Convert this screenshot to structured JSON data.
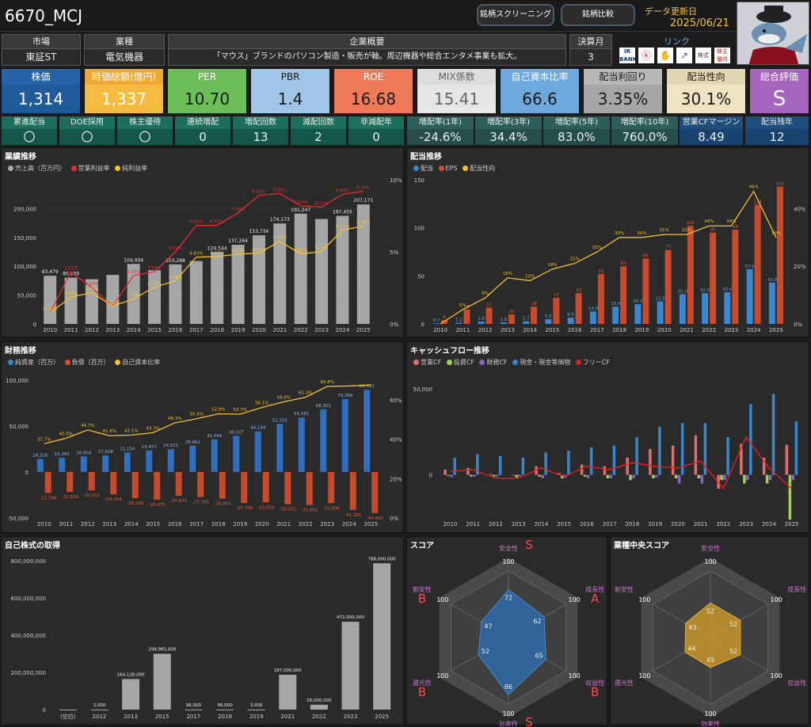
{
  "header": {
    "ticker": "6670_MCJ",
    "btn_screening": "銘柄スクリーニング",
    "btn_compare": "銘柄比較",
    "update_label": "データ更新日",
    "update_date": "2025/06/21"
  },
  "info": {
    "market_label": "市場",
    "market": "東証ST",
    "industry_label": "業種",
    "industry": "電気機器",
    "summary_label": "企業概要",
    "summary": "「マウス」ブランドのパソコン製造・販売が軸。周辺機器や総合エンタメ事業も拡大。",
    "fy_label": "決算月",
    "fy": "3",
    "link_label": "リンク",
    "links": [
      "IR BANK",
      "kabutan",
      "minkabu",
      "kabuyoho",
      "minkabu2",
      "株主優待"
    ]
  },
  "metrics": [
    {
      "label": "株価",
      "value": "1,314",
      "tbg": "#2563a8",
      "vbg": "#1f5a99",
      "tc": "#fff",
      "vc": "#fff"
    },
    {
      "label": "時価総額(億円)",
      "value": "1,337",
      "tbg": "#f0a830",
      "vbg": "#f5bb40",
      "tc": "#fff",
      "vc": "#fff"
    },
    {
      "label": "PER",
      "value": "10.70",
      "tbg": "#6cbe58",
      "vbg": "#6cbe58",
      "tc": "#fff",
      "vc": "#1a1a1a"
    },
    {
      "label": "PBR",
      "value": "1.4",
      "tbg": "#9fc6e6",
      "vbg": "#9fc6e6",
      "tc": "#1a1a1a",
      "vc": "#1a1a1a"
    },
    {
      "label": "ROE",
      "value": "16.68",
      "tbg": "#ef7a5a",
      "vbg": "#ef7a5a",
      "tc": "#fff",
      "vc": "#1a1a1a"
    },
    {
      "label": "MIX係数",
      "value": "15.41",
      "tbg": "#dcdcdc",
      "vbg": "#e6e6e6",
      "tc": "#666",
      "vc": "#666"
    },
    {
      "label": "自己資本比率",
      "value": "66.6",
      "tbg": "#6ea8dc",
      "vbg": "#6ea8dc",
      "tc": "#fff",
      "vc": "#1a1a1a"
    },
    {
      "label": "配当利回り",
      "value": "3.35%",
      "tbg": "#b8b8b8",
      "vbg": "#a6a6a6",
      "tc": "#1a1a1a",
      "vc": "#1a1a1a"
    },
    {
      "label": "配当性向",
      "value": "30.1%",
      "tbg": "#e3d6b2",
      "vbg": "#efe3c4",
      "tc": "#1a1a1a",
      "vc": "#1a1a1a"
    },
    {
      "label": "総合評価",
      "value": "S",
      "tbg": "#a565bf",
      "vbg": "#a565bf",
      "tc": "#fff",
      "vc": "#fff"
    }
  ],
  "flags": [
    {
      "label": "累進配当",
      "value": "〇"
    },
    {
      "label": "DOE採用",
      "value": "〇"
    },
    {
      "label": "株主優待",
      "value": "〇"
    },
    {
      "label": "連続増配",
      "value": "0"
    },
    {
      "label": "増配回数",
      "value": "13"
    },
    {
      "label": "減配回数",
      "value": "2"
    },
    {
      "label": "非減配年",
      "value": "0"
    }
  ],
  "growth": [
    {
      "label": "増配率(1年)",
      "value": "-24.6%"
    },
    {
      "label": "増配率(3年)",
      "value": "34.4%"
    },
    {
      "label": "増配率(5年)",
      "value": "83.0%"
    },
    {
      "label": "増配率(10年)",
      "value": "760.0%"
    }
  ],
  "extra": [
    {
      "label": "営業CFマージン",
      "value": "8.49"
    },
    {
      "label": "配当残年",
      "value": "12"
    }
  ],
  "panels": {
    "perf": "業績推移",
    "div": "配当推移",
    "fin": "財務推移",
    "cf": "キャッシュフロー推移",
    "buyback": "自己株式の取得",
    "score": "スコア",
    "ind": "業種中央スコア"
  },
  "chart_data": [
    {
      "type": "bar",
      "title": "業績推移",
      "legend": [
        "売上高（百万円）",
        "営業利益率",
        "純利益率"
      ],
      "categories": [
        "2010",
        "2011",
        "2012",
        "2013",
        "2014",
        "2015",
        "2016",
        "2017",
        "2018",
        "2019",
        "2020",
        "2021",
        "2022",
        "2023",
        "2024",
        "2025"
      ],
      "series": [
        {
          "name": "売上高（百万円）",
          "values": [
            83479,
            80239,
            77500,
            85000,
            104004,
            93000,
            103288,
            109000,
            124544,
            137264,
            153734,
            174173,
            191247,
            182000,
            187455,
            207171
          ],
          "labels": [
            "83,479",
            "80,239",
            "",
            "",
            "104,004",
            "",
            "103,288",
            "",
            "124,544",
            "137,264",
            "153,734",
            "174,173",
            "191,247",
            "",
            "187,455",
            "207,171"
          ]
        },
        {
          "name": "営業利益率",
          "values": [
            0.76,
            3.61,
            2.53,
            1.23,
            3.36,
            3.62,
            5.0,
            6.84,
            6.83,
            7.7,
            8.92,
            9.05,
            8.2,
            8.1,
            9.0,
            9.2
          ]
        },
        {
          "name": "純利益率",
          "values": [
            0.76,
            1.86,
            2.17,
            1.23,
            1.74,
            2.55,
            2.99,
            4.63,
            4.67,
            4.85,
            4.9,
            5.74,
            4.85,
            5.03,
            6.51,
            6.78
          ]
        }
      ],
      "ylim": [
        0,
        250000
      ],
      "y2lim": [
        0,
        10
      ]
    },
    {
      "type": "bar",
      "title": "配当推移",
      "legend": [
        "配当",
        "EPS",
        "配当性向"
      ],
      "categories": [
        "2010",
        "2011",
        "2012",
        "2013",
        "2014",
        "2015",
        "2016",
        "2017",
        "2018",
        "2019",
        "2020",
        "2021",
        "2022",
        "2023",
        "2024",
        "2025"
      ],
      "series": [
        {
          "name": "配当",
          "values": [
            0.7,
            1.2,
            2.6,
            1.6,
            2.7,
            5.0,
            6.5,
            13.0,
            18.0,
            20.5,
            23.5,
            31.0,
            32.0,
            33.0,
            57.0,
            43.0
          ]
        },
        {
          "name": "EPS",
          "values": [
            4,
            15,
            17,
            10,
            18,
            27,
            32,
            52,
            60,
            68,
            77,
            102,
            95,
            98,
            124,
            143
          ]
        },
        {
          "name": "配当性向",
          "values": [
            0,
            5,
            9,
            16,
            15,
            19,
            21,
            25,
            30,
            30,
            31,
            31,
            34,
            34,
            46,
            30
          ]
        }
      ],
      "ylim": [
        0,
        150
      ],
      "y2lim": [
        0,
        50
      ]
    },
    {
      "type": "bar",
      "title": "財務推移",
      "legend": [
        "純資産（百万）",
        "負債（百万）",
        "自己資本比率"
      ],
      "categories": [
        "2010",
        "2011",
        "2012",
        "2013",
        "2014",
        "2015",
        "2016",
        "2017",
        "2018",
        "2019",
        "2020",
        "2021",
        "2022",
        "2023",
        "2024",
        "2025"
      ],
      "series": [
        {
          "name": "純資産（百万）",
          "values": [
            14316,
            15365,
            16904,
            17928,
            21154,
            23457,
            24811,
            28661,
            35549,
            39327,
            44194,
            52325,
            59281,
            68301,
            79366,
            89522
          ]
        },
        {
          "name": "負債（百万）",
          "values": [
            -22798,
            -21629,
            -20012,
            -24324,
            -28336,
            -29975,
            -25870,
            -27302,
            -28963,
            -33708,
            -33054,
            -35031,
            -35962,
            -33896,
            -41381,
            -44660
          ]
        },
        {
          "name": "自己資本比率",
          "values": [
            37.7,
            40.5,
            44.7,
            41.8,
            42.1,
            43.3,
            48.3,
            50.4,
            52.9,
            52.7,
            56.1,
            59.0,
            61.3,
            66.8,
            67.0,
            67.5
          ]
        }
      ],
      "ylim": [
        -50000,
        100000
      ],
      "y2lim": [
        0,
        70
      ]
    },
    {
      "type": "bar",
      "title": "キャッシュフロー推移",
      "legend": [
        "営業CF",
        "投資CF",
        "財務CF",
        "現金・現金等価物",
        "フリーCF"
      ],
      "categories": [
        "2010",
        "2011",
        "2012",
        "2013",
        "2014",
        "2015",
        "2016",
        "2017",
        "2018",
        "2019",
        "2020",
        "2021",
        "2022",
        "2023",
        "2024",
        "2025"
      ],
      "series": [
        {
          "name": "営業CF",
          "values": [
            3000,
            4000,
            500,
            -500,
            5000,
            1000,
            6000,
            5000,
            10000,
            15000,
            17000,
            23000,
            -8000,
            18000,
            10000,
            17500
          ]
        },
        {
          "name": "投資CF",
          "values": [
            -500,
            -1000,
            -1000,
            -1500,
            -1000,
            -2000,
            -1000,
            -2000,
            -3000,
            -2000,
            -2000,
            -2000,
            -3000,
            -5000,
            -5000,
            -26000
          ]
        },
        {
          "name": "財務CF",
          "values": [
            -1500,
            -1000,
            -1000,
            -1000,
            -2000,
            -1500,
            -2000,
            -2000,
            -2000,
            -1500,
            -5000,
            -5000,
            -3000,
            -3000,
            -3000,
            -3000
          ]
        },
        {
          "name": "現金・現金等価物",
          "values": [
            10000,
            12000,
            11000,
            10000,
            13000,
            14000,
            16000,
            17000,
            22000,
            28000,
            30000,
            30000,
            22000,
            41000,
            47000,
            31000
          ]
        },
        {
          "name": "フリーCF",
          "values": [
            2000,
            3000,
            -2000,
            -2000,
            4000,
            -1000,
            5000,
            3000,
            7000,
            5000,
            4000,
            8000,
            -8000,
            22000,
            4000,
            -8000
          ]
        }
      ],
      "ylim": [
        -25000,
        55000
      ]
    },
    {
      "type": "bar",
      "title": "自己株式の取得",
      "categories": [
        "(空白)",
        "2012",
        "2013",
        "2015",
        "2017",
        "2018",
        "2019",
        "2021",
        "2022",
        "2023",
        "2025"
      ],
      "values": [
        0,
        3000,
        164128000,
        299985000,
        96000,
        96000,
        3000,
        187000000,
        26000000,
        472000000,
        786000000
      ],
      "labels": [
        "",
        "3,000",
        "164,128,000",
        "299,985,000",
        "96,000",
        "96,000",
        "3,000",
        "187,000,000",
        "26,000,000",
        "472,000,000",
        "786,000,000"
      ],
      "ylim": [
        0,
        800000000
      ]
    },
    {
      "type": "radar",
      "title": "スコア",
      "axes": [
        "安全性",
        "成長性",
        "収益性",
        "効率性",
        "還元性",
        "割安性"
      ],
      "values": [
        72,
        62,
        65,
        86,
        52,
        47
      ],
      "grades": [
        "S",
        "A",
        "B",
        "S",
        "B",
        "B"
      ],
      "max": 100
    },
    {
      "type": "radar",
      "title": "業種中央スコア",
      "axes": [
        "安全性",
        "成長性",
        "収益性",
        "効率性",
        "還元性",
        "割安性"
      ],
      "values": [
        52,
        52,
        52,
        45,
        44,
        43
      ],
      "max": 100
    }
  ]
}
